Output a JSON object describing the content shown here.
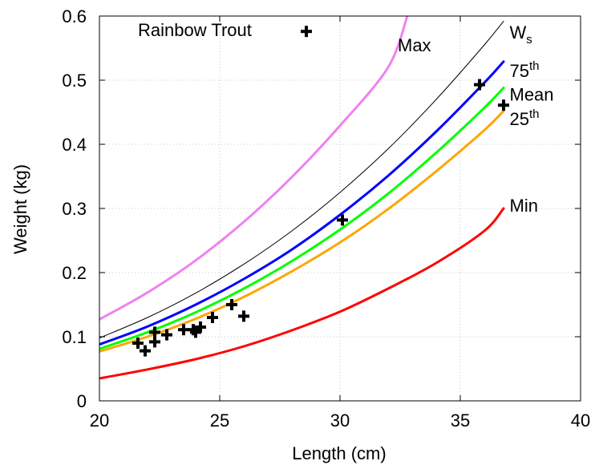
{
  "chart_data": {
    "type": "line",
    "title": "",
    "xlabel": "Length (cm)",
    "ylabel": "Weight (kg)",
    "xlim": [
      20,
      40
    ],
    "ylim": [
      0,
      0.6
    ],
    "x_ticks": [
      20,
      25,
      30,
      35,
      40
    ],
    "y_ticks": [
      0,
      0.1,
      0.2,
      0.3,
      0.4,
      0.5,
      0.6
    ],
    "x_tick_labels": [
      "20",
      "25",
      "30",
      "35",
      "40"
    ],
    "y_tick_labels": [
      "0",
      "0.1",
      "0.2",
      "0.3",
      "0.4",
      "0.5",
      "0.6"
    ],
    "grid": true,
    "species_label": "Rainbow Trout",
    "series": [
      {
        "name": "Max",
        "color": "#ee82ee",
        "width": 3,
        "label": {
          "text": "Max",
          "sup": "",
          "sub": "",
          "x": 32.4,
          "y": 0.555
        },
        "x": [
          20,
          22,
          24,
          26,
          28,
          30,
          32,
          32.8
        ],
        "values": [
          0.127,
          0.169,
          0.219,
          0.279,
          0.349,
          0.429,
          0.52,
          0.6
        ]
      },
      {
        "name": "Ws",
        "color": "#000000",
        "width": 1,
        "label": {
          "text": "W",
          "sup": "",
          "sub": "s",
          "x": 37.05,
          "y": 0.575
        },
        "x": [
          20,
          22,
          24,
          26,
          28,
          30,
          32,
          34,
          36,
          36.8
        ],
        "values": [
          0.098,
          0.13,
          0.168,
          0.213,
          0.265,
          0.325,
          0.393,
          0.47,
          0.555,
          0.592
        ]
      },
      {
        "name": "75th",
        "color": "#0000ff",
        "width": 3,
        "label": {
          "text": "75",
          "sup": "th",
          "sub": "",
          "x": 37.05,
          "y": 0.515
        },
        "x": [
          20,
          22,
          24,
          26,
          28,
          30,
          32,
          34,
          36,
          36.8
        ],
        "values": [
          0.088,
          0.116,
          0.15,
          0.19,
          0.236,
          0.29,
          0.351,
          0.42,
          0.496,
          0.529
        ]
      },
      {
        "name": "Mean",
        "color": "#00ff00",
        "width": 3,
        "label": {
          "text": "Mean",
          "sup": "",
          "sub": "",
          "x": 37.05,
          "y": 0.478
        },
        "x": [
          20,
          22,
          24,
          26,
          28,
          30,
          32,
          34,
          36,
          36.8
        ],
        "values": [
          0.081,
          0.107,
          0.138,
          0.175,
          0.218,
          0.267,
          0.323,
          0.387,
          0.457,
          0.488
        ]
      },
      {
        "name": "25th",
        "color": "#ffa500",
        "width": 3,
        "label": {
          "text": "25",
          "sup": "th",
          "sub": "",
          "x": 37.05,
          "y": 0.44
        },
        "x": [
          20,
          22,
          24,
          26,
          28,
          30,
          32,
          34,
          36,
          36.8
        ],
        "values": [
          0.077,
          0.1,
          0.128,
          0.162,
          0.202,
          0.247,
          0.299,
          0.358,
          0.422,
          0.452
        ]
      },
      {
        "name": "Min",
        "color": "#ff0000",
        "width": 3,
        "label": {
          "text": "Min",
          "sup": "",
          "sub": "",
          "x": 37.05,
          "y": 0.305
        },
        "x": [
          20,
          22,
          24,
          26,
          28,
          30,
          32,
          34,
          36,
          36.8
        ],
        "values": [
          0.035,
          0.049,
          0.065,
          0.085,
          0.11,
          0.139,
          0.175,
          0.215,
          0.265,
          0.3
        ]
      }
    ],
    "scatter": {
      "name": "Rainbow Trout",
      "marker": "plus",
      "color": "#000000",
      "points": [
        [
          21.6,
          0.09
        ],
        [
          21.9,
          0.078
        ],
        [
          22.3,
          0.107
        ],
        [
          22.3,
          0.092
        ],
        [
          22.8,
          0.103
        ],
        [
          23.5,
          0.111
        ],
        [
          23.9,
          0.111
        ],
        [
          24.0,
          0.107
        ],
        [
          24.2,
          0.115
        ],
        [
          24.7,
          0.13
        ],
        [
          25.5,
          0.15
        ],
        [
          26.0,
          0.132
        ],
        [
          30.1,
          0.282
        ],
        [
          35.8,
          0.493
        ],
        [
          36.8,
          0.461
        ],
        [
          28.6,
          0.576
        ]
      ]
    }
  }
}
